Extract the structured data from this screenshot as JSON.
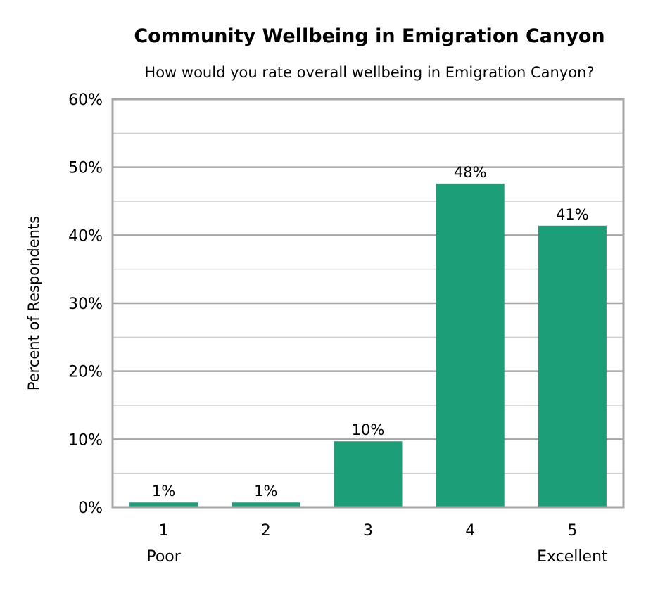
{
  "chart_data": {
    "type": "bar",
    "title": "Community Wellbeing in Emigration Canyon",
    "subtitle": "How would you rate overall wellbeing in Emigration Canyon?",
    "xlabel": "",
    "ylabel": "Percent of Respondents",
    "categories": [
      "1",
      "2",
      "3",
      "4",
      "5"
    ],
    "category_sublabels": [
      "Poor",
      "",
      "",
      "",
      "Excellent"
    ],
    "values": [
      0.7,
      0.7,
      9.7,
      47.6,
      41.4
    ],
    "data_labels": [
      "1%",
      "1%",
      "10%",
      "48%",
      "41%"
    ],
    "ylim": [
      0,
      60
    ],
    "yticks": [
      "0%",
      "10%",
      "20%",
      "30%",
      "40%",
      "50%",
      "60%"
    ],
    "grid": true,
    "bar_color": "#1c9e78"
  }
}
